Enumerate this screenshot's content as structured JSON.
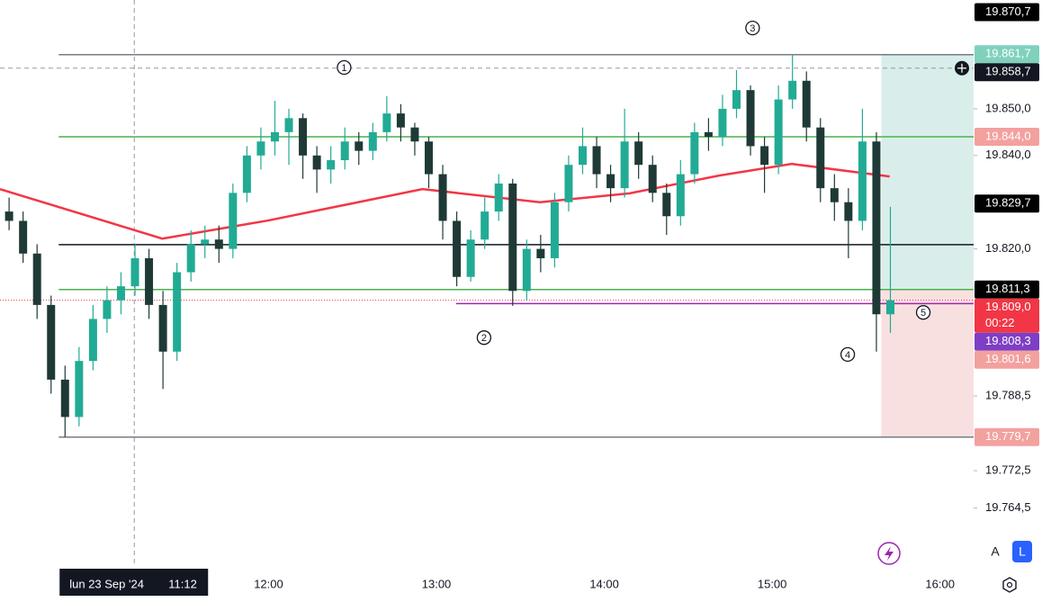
{
  "chart_data": {
    "type": "candlestick",
    "up_color": "#22ab94",
    "down_color": "#1f3a36",
    "xlim": [
      "10:24",
      "16:12"
    ],
    "ylim": [
      19751.9,
      19873.3
    ],
    "xticks": [
      "12:00",
      "13:00",
      "14:00",
      "15:00",
      "16:00"
    ],
    "yticks": [
      {
        "value": 19850.0,
        "label": "19.850,0"
      },
      {
        "value": 19840.0,
        "label": "19.840,0"
      },
      {
        "value": 19820.0,
        "label": "19.820,0"
      },
      {
        "value": 19788.5,
        "label": "19.788,5"
      },
      {
        "value": 19772.5,
        "label": "19.772,5"
      },
      {
        "value": 19764.5,
        "label": "19.764,5"
      }
    ],
    "x": [
      "10:25",
      "10:30",
      "10:35",
      "10:40",
      "10:45",
      "10:50",
      "10:55",
      "11:00",
      "11:05",
      "11:10",
      "11:15",
      "11:20",
      "11:25",
      "11:30",
      "11:35",
      "11:40",
      "11:45",
      "11:50",
      "11:55",
      "12:00",
      "12:05",
      "12:10",
      "12:15",
      "12:20",
      "12:25",
      "12:30",
      "12:35",
      "12:40",
      "12:45",
      "12:50",
      "12:55",
      "13:00",
      "13:05",
      "13:10",
      "13:15",
      "13:20",
      "13:25",
      "13:30",
      "13:35",
      "13:40",
      "13:45",
      "13:50",
      "13:55",
      "14:00",
      "14:05",
      "14:10",
      "14:15",
      "14:20",
      "14:25",
      "14:30",
      "14:35",
      "14:40",
      "14:45",
      "14:50",
      "14:55",
      "15:00",
      "15:05",
      "15:10",
      "15:15",
      "15:20",
      "15:25",
      "15:30",
      "15:35",
      "15:40"
    ],
    "open": [
      19828,
      19826,
      19819,
      19808,
      19792,
      19784,
      19796,
      19805,
      19809,
      19812,
      19818,
      19808,
      19798,
      19815,
      19821,
      19822,
      19820,
      19832,
      19840,
      19843,
      19845,
      19848,
      19840,
      19837,
      19839,
      19843,
      19841,
      19845,
      19849,
      19846,
      19843,
      19836,
      19826,
      19814,
      19822,
      19828,
      19834,
      19811,
      19820,
      19818,
      19830,
      19838,
      19842,
      19836,
      19833,
      19843,
      19838,
      19832,
      19827,
      19836,
      19845,
      19844,
      19850,
      19854,
      19842,
      19838,
      19852,
      19856,
      19846,
      19833,
      19830,
      19826,
      19843,
      19806
    ],
    "high": [
      19831,
      19828,
      19821,
      19810,
      19795,
      19799,
      19808,
      19812,
      19815,
      19821,
      19820,
      19811,
      19817,
      19824,
      19825,
      19825,
      19834,
      19842,
      19846,
      19851.7,
      19850,
      19849,
      19842,
      19842,
      19846,
      19845,
      19847,
      19852.7,
      19851,
      19847,
      19844,
      19838,
      19828,
      19824,
      19831,
      19836,
      19835,
      19822,
      19823,
      19832,
      19840,
      19846,
      19844,
      19838,
      19850,
      19845,
      19840,
      19834,
      19839,
      19847,
      19848,
      19853,
      19858.3,
      19855,
      19844,
      19855,
      19861.6,
      19858,
      19848,
      19836,
      19833,
      19850,
      19845,
      19829
    ],
    "low": [
      19824,
      19817,
      19805,
      19789,
      19779.7,
      19782,
      19794,
      19802,
      19806,
      19810,
      19805,
      19790,
      19796,
      19813,
      19818,
      19817,
      19818,
      19830,
      19837,
      19840,
      19838,
      19835,
      19832,
      19834,
      19837,
      19838,
      19839,
      19843,
      19843,
      19840,
      19833,
      19822,
      19812,
      19813,
      19820,
      19826,
      19807.8,
      19809,
      19815,
      19816,
      19828,
      19836,
      19833,
      19830,
      19831,
      19835,
      19830,
      19823,
      19825,
      19834,
      19841,
      19842,
      19848,
      19840,
      19832,
      19836,
      19850,
      19843,
      19830,
      19826,
      19818,
      19824,
      19798,
      19802
    ],
    "close": [
      19826,
      19819,
      19808,
      19792,
      19784,
      19796,
      19805,
      19809,
      19812,
      19818,
      19808,
      19798,
      19815,
      19821,
      19822,
      19820,
      19832,
      19840,
      19843,
      19845,
      19848,
      19840,
      19837,
      19839,
      19843,
      19841,
      19845,
      19849,
      19846,
      19843,
      19836,
      19826,
      19814,
      19822,
      19828,
      19834,
      19811,
      19820,
      19818,
      19830,
      19838,
      19842,
      19836,
      19833,
      19843,
      19838,
      19832,
      19827,
      19836,
      19845,
      19844,
      19850,
      19854,
      19842,
      19838,
      19852,
      19856,
      19846,
      19833,
      19830,
      19826,
      19843,
      19806,
      19809
    ],
    "ma": {
      "color": "#f23645",
      "x": [
        "10:24",
        "11:22",
        "12:00",
        "12:55",
        "13:37",
        "14:09",
        "14:41",
        "15:07",
        "15:42"
      ],
      "values": [
        19832.8,
        19822.2,
        19826.1,
        19832.8,
        19830.0,
        19831.9,
        19835.7,
        19838.2,
        19835.5
      ]
    },
    "hlines": [
      {
        "value": 19861.6,
        "color": "#787b86",
        "from": "10:45",
        "style": "solid"
      },
      {
        "value": 19844.0,
        "color": "#4caf50",
        "from": "10:45",
        "style": "solid"
      },
      {
        "value": 19820.9,
        "color": "#131722",
        "from": "10:45",
        "style": "solid"
      },
      {
        "value": 19811.3,
        "color": "#4caf50",
        "from": "10:45",
        "style": "solid"
      },
      {
        "value": 19808.3,
        "color": "#9c27b0",
        "from": "13:07",
        "style": "solid"
      },
      {
        "value": 19779.7,
        "color": "#787b86",
        "from": "10:45",
        "style": "solid"
      },
      {
        "value": 19809.0,
        "color": "#f23645",
        "from": "10:24",
        "style": "dotted"
      }
    ],
    "position": {
      "from": "15:39",
      "target": 19861.7,
      "entry": 19811.3,
      "stop": 19779.7,
      "profit_color": "#d9eeea",
      "loss_color": "#f9e0e0"
    },
    "annotations": [
      {
        "label": "1",
        "x": "12:27",
        "y": 19858.85
      },
      {
        "label": "2",
        "x": "13:17",
        "y": 19801.0
      },
      {
        "label": "3",
        "x": "14:53",
        "y": 19867.3
      },
      {
        "label": "4",
        "x": "15:27",
        "y": 19797.4
      },
      {
        "label": "5",
        "x": "15:54",
        "y": 19806.4
      }
    ],
    "price_labels": [
      {
        "value": 19870.7,
        "label": "19.870,7",
        "bg": "#000000",
        "fg": "#ffffff"
      },
      {
        "value": 19861.7,
        "label": "19.861,7",
        "bg": "#7fd1bd",
        "fg": "#ffffff"
      },
      {
        "value": 19858.7,
        "label": "19.858,7",
        "bg": "#131722",
        "fg": "#ffffff"
      },
      {
        "value": 19844.0,
        "label": "19.844,0",
        "bg": "#f3a19f",
        "fg": "#ffffff"
      },
      {
        "value": 19829.7,
        "label": "19.829,7",
        "bg": "#000000",
        "fg": "#ffffff"
      },
      {
        "value": 19811.3,
        "label": "19.811,3",
        "bg": "#000000",
        "fg": "#ffffff"
      },
      {
        "value": 19809.0,
        "label": "19.809,0",
        "sub": "00:22",
        "bg": "#f23645",
        "fg": "#ffffff"
      },
      {
        "value": 19808.3,
        "label": "19.808,3",
        "bg": "#7e3fc4",
        "fg": "#ffffff"
      },
      {
        "value": 19801.6,
        "label": "19.801,6",
        "bg": "#f3a19f",
        "fg": "#ffffff"
      },
      {
        "value": 19779.7,
        "label": "19.779,7",
        "bg": "#f3a19f",
        "fg": "#ffffff"
      }
    ],
    "crosshair": {
      "x": "11:12",
      "y": 19858.7,
      "date_label": "lun 23 Sep '24",
      "time_label": "11:12"
    },
    "buttons": [
      "A",
      "L"
    ]
  }
}
